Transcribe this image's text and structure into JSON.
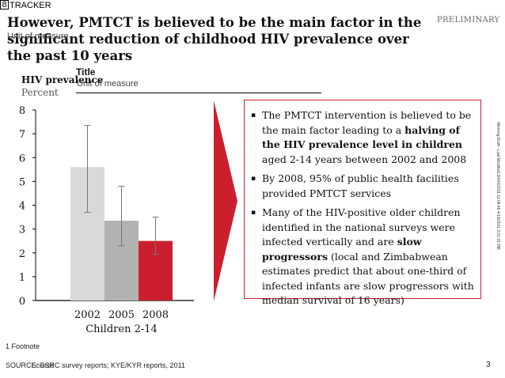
{
  "header": {
    "tracker_number": "8",
    "tracker": "TRACKER",
    "title": "However, PMTCT is believed to be the main factor in the significant reduction of childhood HIV prevalence over the past 10 years",
    "unit_of_measure_ghost": "Unit of measure",
    "preliminary": "PRELIMINARY"
  },
  "side_note": "Working Draft - Last Modified 20/04/2011 11:06:48 4/19/2011 3:01:31 PM",
  "chart_header": {
    "title_ghost": "Title",
    "unit_ghost": "Unit of measure",
    "title": "HIV prevalence",
    "unit": "Percent"
  },
  "chart_data": {
    "type": "bar",
    "categories": [
      "2002",
      "2005",
      "2008"
    ],
    "group_label": "Children 2-14",
    "values": [
      5.6,
      3.35,
      2.5
    ],
    "error_low": [
      3.7,
      2.3,
      1.95
    ],
    "error_high": [
      7.35,
      4.8,
      3.5
    ],
    "bar_colors": [
      "#d9d9d9",
      "#b2b2b2",
      "#cc1f2d"
    ],
    "title": "HIV prevalence",
    "ylabel": "Percent",
    "ylim": [
      0,
      8
    ],
    "yticks": [
      "0",
      "1",
      "2",
      "3",
      "4",
      "5",
      "6",
      "7",
      "8"
    ],
    "grid": false
  },
  "bullets": [
    {
      "parts": [
        {
          "text": "The PMTCT intervention is believed to be the main factor leading to a ",
          "bold": false
        },
        {
          "text": "halving of the HIV prevalence level in children",
          "bold": true
        },
        {
          "text": " aged 2-14 years between 2002 and 2008",
          "bold": false
        }
      ]
    },
    {
      "parts": [
        {
          "text": "By 2008, 95% of public health facilities provided PMTCT services",
          "bold": false
        }
      ]
    },
    {
      "parts": [
        {
          "text": "Many of the HIV-positive older children identified in the national surveys were infected vertically and are ",
          "bold": false
        },
        {
          "text": "slow progressors",
          "bold": true
        },
        {
          "text": " (local and Zimbabwean estimates predict that about one-third of infected infants are slow progressors with median survival of 16 years)",
          "bold": false
        }
      ]
    }
  ],
  "bullet_marker": "▪",
  "footnote": "1 Footnote",
  "source": "SOURCE: BSRC survey reports; KYE/KYR reports, 2011",
  "source_ghost": "Source",
  "page_number": "3",
  "colors": {
    "accent": "#cc1f2d"
  }
}
